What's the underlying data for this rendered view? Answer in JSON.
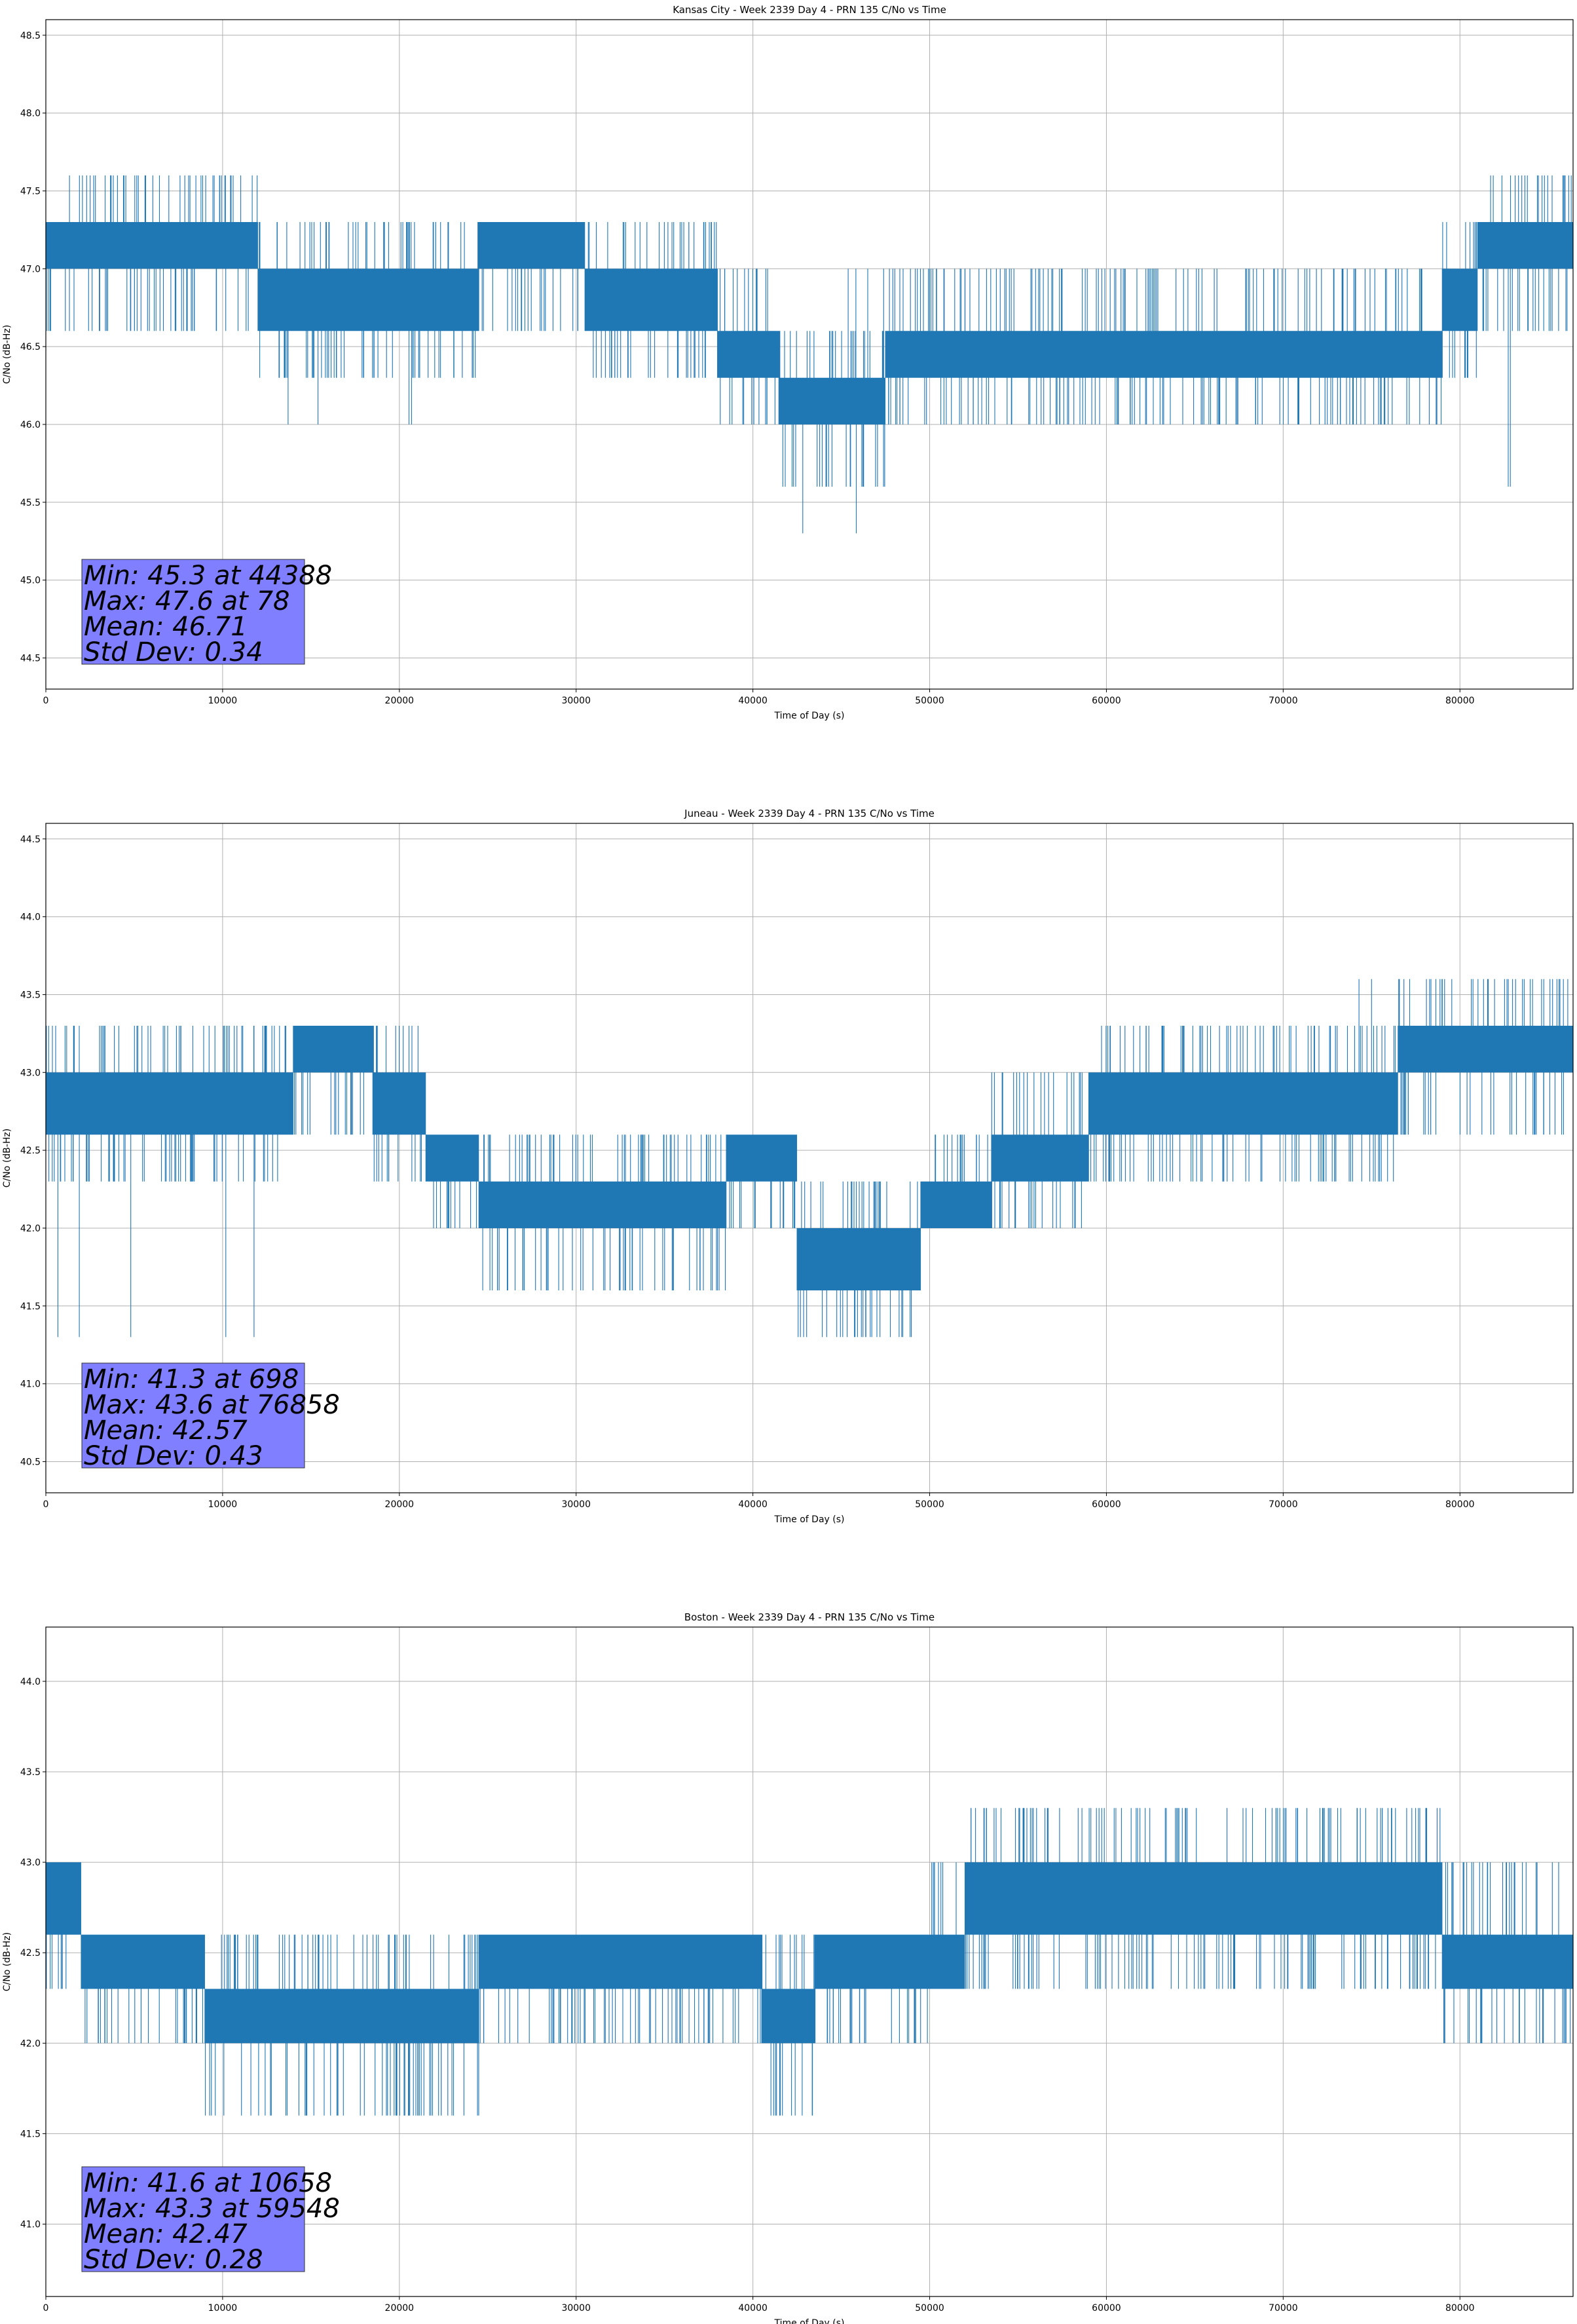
{
  "chart_data": [
    {
      "type": "line",
      "title": "Kansas City - Week 2339 Day 4 - PRN 135 C/No vs Time",
      "xlabel": "Time of Day (s)",
      "ylabel": "C/No (dB-Hz)",
      "xlim": [
        0,
        86400
      ],
      "ylim": [
        44.3,
        48.6
      ],
      "xticks": [
        0,
        10000,
        20000,
        30000,
        40000,
        50000,
        60000,
        70000,
        80000
      ],
      "yticks": [
        "44.5",
        "45.0",
        "45.5",
        "46.0",
        "46.5",
        "47.0",
        "47.5",
        "48.0",
        "48.5"
      ],
      "grid": true,
      "color": "#1f77b4",
      "stats": [
        "Min: 45.3 at 44388",
        "Max: 47.6 at 78",
        "Mean: 46.71",
        "Std Dev: 0.34"
      ],
      "bands": [
        {
          "x0": 0,
          "x1": 12000,
          "lo": 47.0,
          "hi": 47.3,
          "spikes_up": [
            47.6
          ],
          "spikes_down": [
            46.6
          ]
        },
        {
          "x0": 12000,
          "x1": 24500,
          "lo": 46.6,
          "hi": 47.0,
          "spikes_up": [
            47.3
          ],
          "spikes_down": [
            46.3,
            46.0
          ]
        },
        {
          "x0": 24500,
          "x1": 30500,
          "lo": 47.0,
          "hi": 47.3,
          "spikes_up": [],
          "spikes_down": [
            46.6
          ]
        },
        {
          "x0": 30500,
          "x1": 38000,
          "lo": 46.6,
          "hi": 47.0,
          "spikes_up": [
            47.3
          ],
          "spikes_down": [
            46.3
          ]
        },
        {
          "x0": 38000,
          "x1": 41500,
          "lo": 46.3,
          "hi": 46.6,
          "spikes_up": [
            47.0
          ],
          "spikes_down": [
            46.0
          ]
        },
        {
          "x0": 41500,
          "x1": 47500,
          "lo": 46.0,
          "hi": 46.3,
          "spikes_up": [
            46.6,
            47.0
          ],
          "spikes_down": [
            45.6,
            45.3
          ]
        },
        {
          "x0": 47500,
          "x1": 79000,
          "lo": 46.3,
          "hi": 46.6,
          "spikes_up": [
            47.0
          ],
          "spikes_down": [
            46.0
          ]
        },
        {
          "x0": 79000,
          "x1": 81000,
          "lo": 46.6,
          "hi": 47.0,
          "spikes_up": [
            47.3
          ],
          "spikes_down": [
            46.3
          ]
        },
        {
          "x0": 81000,
          "x1": 86400,
          "lo": 47.0,
          "hi": 47.3,
          "spikes_up": [
            47.6
          ],
          "spikes_down": [
            46.6,
            45.6
          ]
        }
      ]
    },
    {
      "type": "line",
      "title": "Juneau - Week 2339 Day 4 - PRN 135 C/No vs Time",
      "xlabel": "Time of Day (s)",
      "ylabel": "C/No (dB-Hz)",
      "xlim": [
        0,
        86400
      ],
      "ylim": [
        40.3,
        44.6
      ],
      "xticks": [
        0,
        10000,
        20000,
        30000,
        40000,
        50000,
        60000,
        70000,
        80000
      ],
      "yticks": [
        "40.5",
        "41.0",
        "41.5",
        "42.0",
        "42.5",
        "43.0",
        "43.5",
        "44.0",
        "44.5"
      ],
      "grid": true,
      "color": "#1f77b4",
      "stats": [
        "Min: 41.3 at 698",
        "Max: 43.6 at 76858",
        "Mean: 42.57",
        "Std Dev: 0.43"
      ],
      "bands": [
        {
          "x0": 0,
          "x1": 14000,
          "lo": 42.6,
          "hi": 43.0,
          "spikes_up": [
            43.3
          ],
          "spikes_down": [
            42.3,
            41.3
          ]
        },
        {
          "x0": 14000,
          "x1": 18500,
          "lo": 43.0,
          "hi": 43.3,
          "spikes_up": [],
          "spikes_down": [
            42.6
          ]
        },
        {
          "x0": 18500,
          "x1": 21500,
          "lo": 42.6,
          "hi": 43.0,
          "spikes_up": [
            43.3
          ],
          "spikes_down": [
            42.3
          ]
        },
        {
          "x0": 21500,
          "x1": 24500,
          "lo": 42.3,
          "hi": 42.6,
          "spikes_up": [],
          "spikes_down": [
            42.0
          ]
        },
        {
          "x0": 24500,
          "x1": 38500,
          "lo": 42.0,
          "hi": 42.3,
          "spikes_up": [
            42.6
          ],
          "spikes_down": [
            41.6
          ]
        },
        {
          "x0": 38500,
          "x1": 42500,
          "lo": 42.3,
          "hi": 42.6,
          "spikes_up": [],
          "spikes_down": [
            42.0
          ]
        },
        {
          "x0": 42500,
          "x1": 49500,
          "lo": 41.6,
          "hi": 42.0,
          "spikes_up": [
            42.3
          ],
          "spikes_down": [
            41.3
          ]
        },
        {
          "x0": 49500,
          "x1": 53500,
          "lo": 42.0,
          "hi": 42.3,
          "spikes_up": [
            42.6
          ],
          "spikes_down": []
        },
        {
          "x0": 53500,
          "x1": 59000,
          "lo": 42.3,
          "hi": 42.6,
          "spikes_up": [
            43.0
          ],
          "spikes_down": [
            42.0
          ]
        },
        {
          "x0": 59000,
          "x1": 73500,
          "lo": 42.6,
          "hi": 43.0,
          "spikes_up": [
            43.3
          ],
          "spikes_down": [
            42.3
          ]
        },
        {
          "x0": 73500,
          "x1": 76500,
          "lo": 42.6,
          "hi": 43.0,
          "spikes_up": [
            43.3,
            43.6
          ],
          "spikes_down": [
            42.3
          ]
        },
        {
          "x0": 76500,
          "x1": 86400,
          "lo": 43.0,
          "hi": 43.3,
          "spikes_up": [
            43.6
          ],
          "spikes_down": [
            42.6
          ]
        }
      ]
    },
    {
      "type": "line",
      "title": "Boston - Week 2339 Day 4 - PRN 135 C/No vs Time",
      "xlabel": "Time of Day (s)",
      "ylabel": "C/No (dB-Hz)",
      "xlim": [
        0,
        86400
      ],
      "ylim": [
        40.6,
        44.3
      ],
      "xticks": [
        0,
        10000,
        20000,
        30000,
        40000,
        50000,
        60000,
        70000,
        80000
      ],
      "yticks": [
        "41.0",
        "41.5",
        "42.0",
        "42.5",
        "43.0",
        "43.5",
        "44.0"
      ],
      "grid": true,
      "color": "#1f77b4",
      "stats": [
        "Min: 41.6 at 10658",
        "Max: 43.3 at 59548",
        "Mean: 42.47",
        "Std Dev: 0.28"
      ],
      "bands": [
        {
          "x0": 0,
          "x1": 2000,
          "lo": 42.6,
          "hi": 43.0,
          "spikes_up": [],
          "spikes_down": [
            42.3
          ]
        },
        {
          "x0": 2000,
          "x1": 9000,
          "lo": 42.3,
          "hi": 42.6,
          "spikes_up": [],
          "spikes_down": [
            42.0
          ]
        },
        {
          "x0": 9000,
          "x1": 24500,
          "lo": 42.0,
          "hi": 42.3,
          "spikes_up": [
            42.6
          ],
          "spikes_down": [
            41.6
          ]
        },
        {
          "x0": 24500,
          "x1": 40500,
          "lo": 42.3,
          "hi": 42.6,
          "spikes_up": [],
          "spikes_down": [
            42.0
          ]
        },
        {
          "x0": 40500,
          "x1": 43500,
          "lo": 42.0,
          "hi": 42.3,
          "spikes_up": [
            42.6
          ],
          "spikes_down": [
            41.6
          ]
        },
        {
          "x0": 43500,
          "x1": 50000,
          "lo": 42.3,
          "hi": 42.6,
          "spikes_up": [],
          "spikes_down": [
            42.0
          ]
        },
        {
          "x0": 50000,
          "x1": 52000,
          "lo": 42.3,
          "hi": 42.6,
          "spikes_up": [
            43.0
          ],
          "spikes_down": []
        },
        {
          "x0": 52000,
          "x1": 79000,
          "lo": 42.6,
          "hi": 43.0,
          "spikes_up": [
            43.3
          ],
          "spikes_down": [
            42.3
          ]
        },
        {
          "x0": 79000,
          "x1": 86400,
          "lo": 42.3,
          "hi": 42.6,
          "spikes_up": [
            43.0
          ],
          "spikes_down": [
            42.0
          ]
        }
      ]
    }
  ]
}
